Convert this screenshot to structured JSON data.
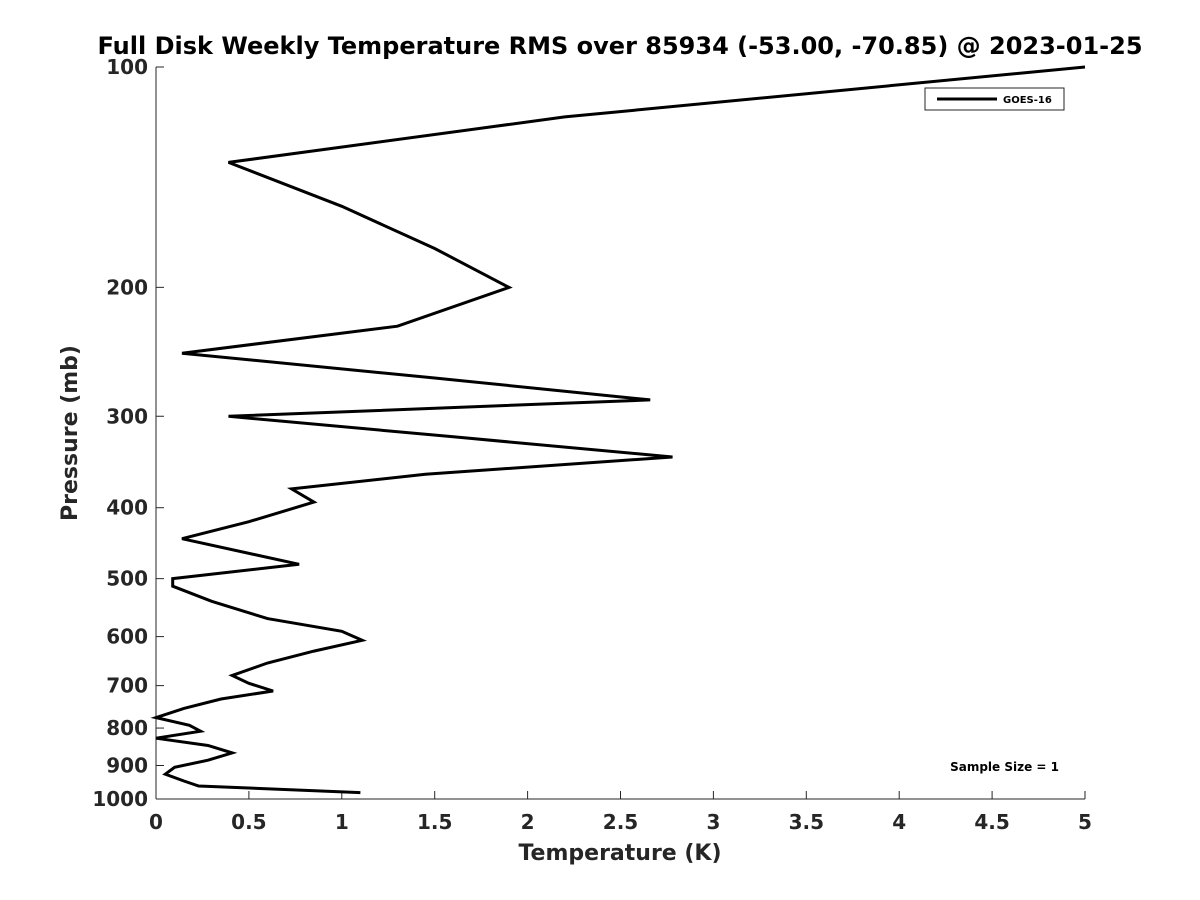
{
  "chart_data": {
    "type": "line",
    "title": "Full Disk Weekly Temperature RMS over 85934 (-53.00, -70.85) @ 2023-01-25",
    "xlabel": "Temperature (K)",
    "ylabel": "Pressure (mb)",
    "xlim": [
      0,
      5
    ],
    "ylim": [
      100,
      1000
    ],
    "y_scale": "log",
    "y_reversed": true,
    "grid": false,
    "legend_position": "top-right",
    "x_ticks": [
      "0",
      "0.5",
      "1",
      "1.5",
      "2",
      "2.5",
      "3",
      "3.5",
      "4",
      "4.5",
      "5"
    ],
    "y_ticks": [
      "100",
      "200",
      "300",
      "400",
      "500",
      "600",
      "700",
      "800",
      "900",
      "1000"
    ],
    "annotation": "Sample Size = 1",
    "series": [
      {
        "name": "GOES-16",
        "color": "#000000",
        "x": [
          5.0,
          2.2,
          0.39,
          1.0,
          1.5,
          1.9,
          1.3,
          0.14,
          1.5,
          2.66,
          0.39,
          1.6,
          2.78,
          1.45,
          0.73,
          0.85,
          0.5,
          0.14,
          0.77,
          0.09,
          0.09,
          0.3,
          0.6,
          1.0,
          1.11,
          0.85,
          0.6,
          0.41,
          0.5,
          0.63,
          0.35,
          0.15,
          0.0,
          0.18,
          0.24,
          0.0,
          0.28,
          0.41,
          0.28,
          0.1,
          0.05,
          0.15,
          0.23,
          1.1
        ],
        "y": [
          100,
          117,
          135,
          155,
          177,
          200,
          226,
          246,
          266,
          285,
          300,
          320,
          341,
          360,
          377,
          393,
          418,
          441,
          478,
          500,
          512,
          537,
          567,
          590,
          607,
          628,
          652,
          678,
          695,
          712,
          730,
          752,
          774,
          793,
          808,
          826,
          845,
          865,
          885,
          905,
          925,
          945,
          960,
          980
        ]
      }
    ]
  }
}
